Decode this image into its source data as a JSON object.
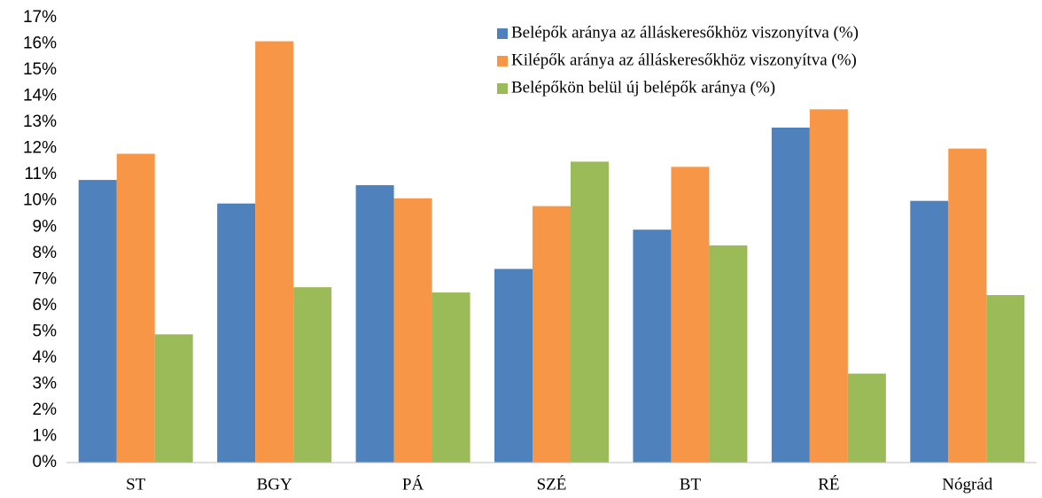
{
  "chart_data": {
    "type": "bar",
    "categories": [
      "ST",
      "BGY",
      "PÁ",
      "SZÉ",
      "BT",
      "RÉ",
      "Nógrád"
    ],
    "series": [
      {
        "name": "Belépők aránya az álláskeresőkhöz viszonyítva (%)",
        "color": "#4f81bd",
        "values": [
          10.8,
          9.9,
          10.6,
          7.4,
          8.9,
          12.8,
          10.0
        ]
      },
      {
        "name": "Kilépők aránya az álláskeresőkhöz viszonyítva (%)",
        "color": "#f79646",
        "values": [
          11.8,
          16.1,
          10.1,
          9.8,
          11.3,
          13.5,
          12.0
        ]
      },
      {
        "name": "Belépőkön belül új belépők aránya (%)",
        "color": "#9bbb59",
        "values": [
          4.9,
          6.7,
          6.5,
          11.5,
          8.3,
          3.4,
          6.4
        ]
      }
    ],
    "ylim": [
      0,
      17
    ],
    "yticks": [
      {
        "value": 0,
        "label": "0%"
      },
      {
        "value": 1,
        "label": "1%"
      },
      {
        "value": 2,
        "label": "2%"
      },
      {
        "value": 3,
        "label": "3%"
      },
      {
        "value": 4,
        "label": "4%"
      },
      {
        "value": 5,
        "label": "5%"
      },
      {
        "value": 6,
        "label": "6%"
      },
      {
        "value": 7,
        "label": "7%"
      },
      {
        "value": 8,
        "label": "8%"
      },
      {
        "value": 9,
        "label": "9%"
      },
      {
        "value": 10,
        "label": "10%"
      },
      {
        "value": 11,
        "label": "11%"
      },
      {
        "value": 12,
        "label": "12%"
      },
      {
        "value": 13,
        "label": "13%"
      },
      {
        "value": 14,
        "label": "14%"
      },
      {
        "value": 15,
        "label": "15%"
      },
      {
        "value": 16,
        "label": "16%"
      },
      {
        "value": 17,
        "label": "17%"
      }
    ],
    "grid": false,
    "legend": "top-right"
  }
}
